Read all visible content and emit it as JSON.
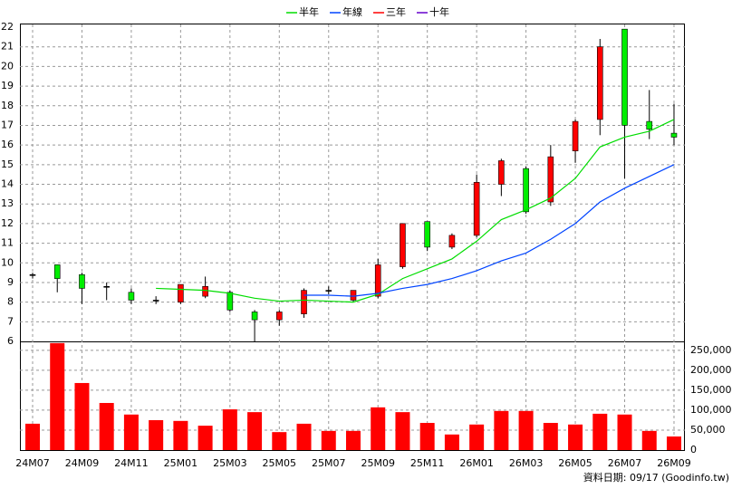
{
  "chart_data": [
    {
      "type": "candlestick",
      "categories": [
        "24M07",
        null,
        "24M09",
        null,
        "24M11",
        null,
        "25M01",
        null,
        "25M03",
        null,
        "25M05",
        null,
        "25M07",
        null,
        "25M09",
        null,
        "25M11",
        null,
        "26M01",
        null,
        "26M03",
        null,
        "26M05",
        null,
        "26M07",
        null,
        "26M09"
      ],
      "open": [
        9.4,
        9.9,
        9.4,
        8.8,
        8.5,
        8.1,
        8.0,
        8.3,
        8.5,
        7.5,
        7.1,
        7.4,
        8.6,
        8.1,
        8.3,
        9.8,
        12.1,
        10.8,
        11.4,
        14.0,
        14.8,
        13.1,
        15.7,
        17.3,
        21.9,
        17.2,
        16.6
      ],
      "high": [
        9.5,
        9.9,
        9.5,
        9.0,
        8.7,
        8.3,
        8.9,
        9.3,
        8.6,
        7.6,
        7.6,
        8.7,
        8.8,
        8.6,
        10.2,
        12.0,
        12.1,
        11.5,
        14.5,
        15.3,
        14.9,
        16.0,
        17.3,
        21.4,
        21.9,
        18.8,
        18.1
      ],
      "low": [
        9.2,
        8.5,
        7.9,
        8.1,
        7.9,
        7.9,
        7.9,
        8.2,
        7.5,
        6.0,
        6.8,
        7.2,
        8.4,
        8.0,
        8.2,
        9.7,
        10.6,
        10.7,
        11.3,
        13.4,
        12.5,
        12.9,
        15.1,
        16.5,
        14.3,
        16.3,
        16.0
      ],
      "close": [
        9.4,
        9.2,
        8.7,
        8.8,
        8.1,
        8.1,
        8.9,
        8.8,
        7.6,
        7.1,
        7.5,
        8.6,
        8.6,
        8.6,
        9.9,
        12.0,
        10.8,
        11.4,
        14.1,
        15.2,
        12.6,
        15.4,
        17.2,
        21.0,
        17.0,
        16.8,
        16.4
      ],
      "up_color": "#ff0000",
      "down_color": "#00ee00",
      "series": [
        {
          "name": "半年",
          "color": "#00dd00",
          "values": [
            null,
            null,
            null,
            null,
            null,
            8.7,
            8.65,
            8.6,
            8.45,
            8.2,
            8.05,
            8.1,
            8.05,
            8.0,
            8.4,
            9.2,
            9.7,
            10.2,
            11.1,
            12.2,
            12.7,
            13.3,
            14.3,
            15.9,
            16.4,
            16.7,
            17.3
          ]
        },
        {
          "name": "年線",
          "color": "#0044ff",
          "values": [
            null,
            null,
            null,
            null,
            null,
            null,
            null,
            null,
            null,
            null,
            null,
            8.35,
            8.35,
            8.3,
            8.45,
            8.7,
            8.9,
            9.2,
            9.6,
            10.1,
            10.5,
            11.2,
            12.0,
            13.1,
            13.8,
            14.4,
            15.0
          ]
        },
        {
          "name": "三年",
          "color": "#ff0000",
          "values": [
            null,
            null,
            null,
            null,
            null,
            null,
            null,
            null,
            null,
            null,
            null,
            null,
            null,
            null,
            null,
            null,
            null,
            null,
            null,
            null,
            null,
            null,
            null,
            null,
            null,
            null,
            null
          ]
        },
        {
          "name": "十年",
          "color": "#6600cc",
          "values": [
            null,
            null,
            null,
            null,
            null,
            null,
            null,
            null,
            null,
            null,
            null,
            null,
            null,
            null,
            null,
            null,
            null,
            null,
            null,
            null,
            null,
            null,
            null,
            null,
            null,
            null,
            null
          ]
        }
      ],
      "ylim": [
        6,
        22
      ],
      "yticks": [
        6,
        7,
        8,
        9,
        10,
        11,
        12,
        13,
        14,
        15,
        16,
        17,
        18,
        19,
        20,
        21,
        22
      ],
      "grid": true,
      "legend": "top"
    },
    {
      "type": "bar",
      "values": [
        66000,
        268000,
        168000,
        118000,
        89000,
        75000,
        73000,
        61000,
        102000,
        95000,
        45000,
        66000,
        48000,
        48000,
        107000,
        95000,
        68000,
        39000,
        64000,
        98000,
        98000,
        68000,
        64000,
        91000,
        89000,
        48000,
        34000
      ],
      "color": "#ff0000",
      "ylim": [
        0,
        270000
      ],
      "yticks": [
        0,
        {
          "value": 50000,
          "label": "50,000"
        },
        {
          "value": 100000,
          "label": "100,000"
        },
        {
          "value": 150000,
          "label": "150,000"
        },
        {
          "value": 200000,
          "label": "200,000"
        },
        {
          "value": 250000,
          "label": "250,000"
        }
      ],
      "grid": true,
      "footer": "資料日期: 09/17  (Goodinfo.tw)"
    }
  ]
}
